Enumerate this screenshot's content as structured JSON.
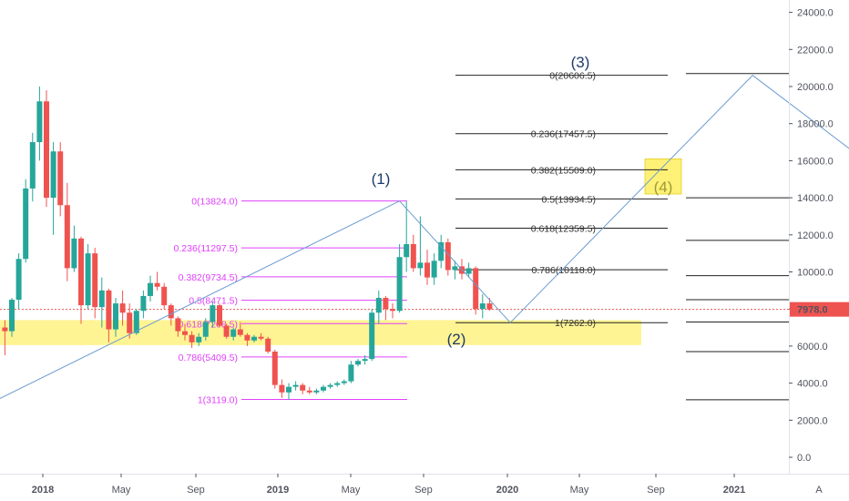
{
  "chart_data": {
    "type": "candlestick",
    "price_axis": {
      "ticks": [
        "24000.0",
        "22000.0",
        "20000.0",
        "18000.0",
        "16000.0",
        "14000.0",
        "12000.0",
        "10000.0",
        "8000.0",
        "6000.0",
        "4000.0",
        "2000.0",
        "0.0"
      ],
      "range": [
        -1500,
        25200
      ]
    },
    "time_axis": {
      "labels": [
        "2018",
        "May",
        "Sep",
        "2019",
        "May",
        "Sep",
        "2020",
        "May",
        "Sep",
        "2021"
      ],
      "bold": [
        true,
        false,
        false,
        true,
        false,
        false,
        true,
        false,
        false,
        true
      ]
    },
    "current_price": {
      "label": "7978.0",
      "value": 7978,
      "color": "#ef5350"
    },
    "colors": {
      "up": "#26a69a",
      "down": "#ef5350",
      "fib_magenta": "#e040fb",
      "projection": "#6a9bd1",
      "zone": "#ffeb3b"
    },
    "candles": [
      [
        -1,
        7000,
        7400,
        5500,
        6800
      ],
      [
        0,
        6800,
        8600,
        6500,
        8500
      ],
      [
        1,
        8500,
        11000,
        8000,
        10700
      ],
      [
        2,
        10700,
        15000,
        10500,
        14500
      ],
      [
        3,
        14500,
        17500,
        13800,
        17000
      ],
      [
        4,
        17000,
        20000,
        16000,
        19200
      ],
      [
        5,
        19200,
        19800,
        13500,
        14000
      ],
      [
        6,
        14000,
        17000,
        12000,
        16500
      ],
      [
        7,
        16500,
        17000,
        13000,
        13600
      ],
      [
        8,
        13600,
        14800,
        9500,
        10200
      ],
      [
        9,
        10200,
        12500,
        10000,
        11800
      ],
      [
        10,
        11800,
        11900,
        7200,
        8200
      ],
      [
        11,
        8200,
        11500,
        8000,
        11000
      ],
      [
        12,
        11000,
        11300,
        7500,
        8100
      ],
      [
        13,
        8100,
        9700,
        7000,
        9000
      ],
      [
        14,
        9000,
        9100,
        6200,
        6900
      ],
      [
        15,
        6900,
        8600,
        6500,
        8300
      ],
      [
        16,
        8300,
        9000,
        7100,
        7800
      ],
      [
        17,
        7800,
        8300,
        6400,
        6700
      ],
      [
        18,
        6700,
        8000,
        6600,
        7900
      ],
      [
        19,
        7900,
        9000,
        7500,
        8700
      ],
      [
        20,
        8700,
        9800,
        8400,
        9400
      ],
      [
        21,
        9400,
        10000,
        9000,
        9200
      ],
      [
        22,
        9200,
        9400,
        8000,
        8200
      ],
      [
        23,
        8200,
        8300,
        7100,
        7500
      ],
      [
        24,
        7500,
        7600,
        6500,
        6800
      ],
      [
        25,
        6800,
        7200,
        6300,
        6600
      ],
      [
        26,
        6600,
        6800,
        5900,
        6200
      ],
      [
        27,
        6200,
        6700,
        6000,
        6500
      ],
      [
        28,
        6500,
        7500,
        6300,
        7300
      ],
      [
        29,
        7300,
        8400,
        7000,
        8200
      ],
      [
        30,
        8200,
        8300,
        7000,
        7100
      ],
      [
        31,
        7100,
        7200,
        6400,
        6500
      ],
      [
        32,
        6500,
        7000,
        6300,
        6900
      ],
      [
        33,
        6900,
        7300,
        6500,
        6600
      ],
      [
        34,
        6600,
        6700,
        6000,
        6300
      ],
      [
        35,
        6300,
        6600,
        6200,
        6500
      ],
      [
        36,
        6500,
        6700,
        6300,
        6400
      ],
      [
        37,
        6400,
        6500,
        5600,
        5700
      ],
      [
        38,
        5700,
        5800,
        3700,
        3900
      ],
      [
        39,
        3900,
        4200,
        3200,
        3500
      ],
      [
        40,
        3500,
        4000,
        3100,
        3800
      ],
      [
        41,
        3800,
        4100,
        3600,
        3900
      ],
      [
        42,
        3900,
        4000,
        3400,
        3600
      ],
      [
        43,
        3600,
        3800,
        3400,
        3500
      ],
      [
        44,
        3500,
        3700,
        3400,
        3600
      ],
      [
        45,
        3600,
        3900,
        3500,
        3800
      ],
      [
        46,
        3800,
        4000,
        3700,
        3900
      ],
      [
        47,
        3900,
        4100,
        3800,
        4000
      ],
      [
        48,
        4000,
        4200,
        3900,
        4100
      ],
      [
        49,
        4100,
        5200,
        4000,
        5000
      ],
      [
        50,
        5000,
        5300,
        4900,
        5200
      ],
      [
        51,
        5200,
        5500,
        5000,
        5300
      ],
      [
        52,
        5300,
        8000,
        5200,
        7800
      ],
      [
        53,
        7800,
        9000,
        7200,
        8600
      ],
      [
        54,
        8600,
        8700,
        7400,
        8000
      ],
      [
        55,
        8000,
        8300,
        7500,
        7900
      ],
      [
        56,
        7900,
        11500,
        7800,
        10800
      ],
      [
        57,
        10800,
        13800,
        10000,
        11500
      ],
      [
        58,
        11500,
        12000,
        10000,
        10200
      ],
      [
        59,
        10200,
        13000,
        9800,
        10500
      ],
      [
        60,
        10500,
        11200,
        9300,
        9700
      ],
      [
        61,
        9700,
        11000,
        9300,
        10600
      ],
      [
        62,
        10600,
        12000,
        10200,
        11600
      ],
      [
        63,
        11600,
        11800,
        9800,
        10100
      ],
      [
        64,
        10100,
        10600,
        9600,
        10300
      ],
      [
        65,
        10300,
        10700,
        9600,
        9900
      ],
      [
        66,
        9900,
        10500,
        9700,
        10200
      ],
      [
        67,
        10200,
        10300,
        7700,
        8000
      ],
      [
        68,
        8000,
        8800,
        7500,
        8300
      ],
      [
        69,
        8300,
        8600,
        7900,
        7978
      ]
    ],
    "fib_magenta": [
      {
        "ratio": "0",
        "price": "13824.0",
        "value": 13824
      },
      {
        "ratio": "0.236",
        "price": "11297.5",
        "value": 11297.5
      },
      {
        "ratio": "0.382",
        "price": "9734.5",
        "value": 9734.5
      },
      {
        "ratio": "0.5",
        "price": "8471.5",
        "value": 8471.5
      },
      {
        "ratio": "0.618",
        "price": "7208.5",
        "value": 7208.5
      },
      {
        "ratio": "0.786",
        "price": "5409.5",
        "value": 5409.5
      },
      {
        "ratio": "1",
        "price": "3119.0",
        "value": 3119
      }
    ],
    "fib_black": [
      {
        "ratio": "0",
        "price": "20606.5",
        "value": 20606.5
      },
      {
        "ratio": "0.236",
        "price": "17457.5",
        "value": 17457.5
      },
      {
        "ratio": "0.382",
        "price": "15509.0",
        "value": 15509
      },
      {
        "ratio": "0.5",
        "price": "13934.5",
        "value": 13934.5
      },
      {
        "ratio": "0.618",
        "price": "12359.5",
        "value": 12359.5
      },
      {
        "ratio": "0.786",
        "price": "10118.0",
        "value": 10118
      },
      {
        "ratio": "1",
        "price": "7262.0",
        "value": 7262
      }
    ],
    "right_levels": [
      20700,
      14000,
      11700,
      9800,
      8500,
      7300,
      5700,
      3100
    ],
    "projection_path": [
      [
        -2,
        3119
      ],
      [
        56,
        13824
      ],
      [
        72,
        7262
      ],
      [
        107,
        20606.5
      ],
      [
        125,
        15509
      ],
      [
        146,
        26000
      ]
    ],
    "support_zone": {
      "top": 7400,
      "bottom": 6050
    },
    "wave_labels": [
      {
        "text": "(1)",
        "color": "#1e3a6e"
      },
      {
        "text": "(2)",
        "color": "#1e3a6e"
      },
      {
        "text": "(3)",
        "color": "#1e3a6e"
      },
      {
        "text": "(4)",
        "color": "#9b9b3a"
      }
    ],
    "corner_button": "A"
  }
}
